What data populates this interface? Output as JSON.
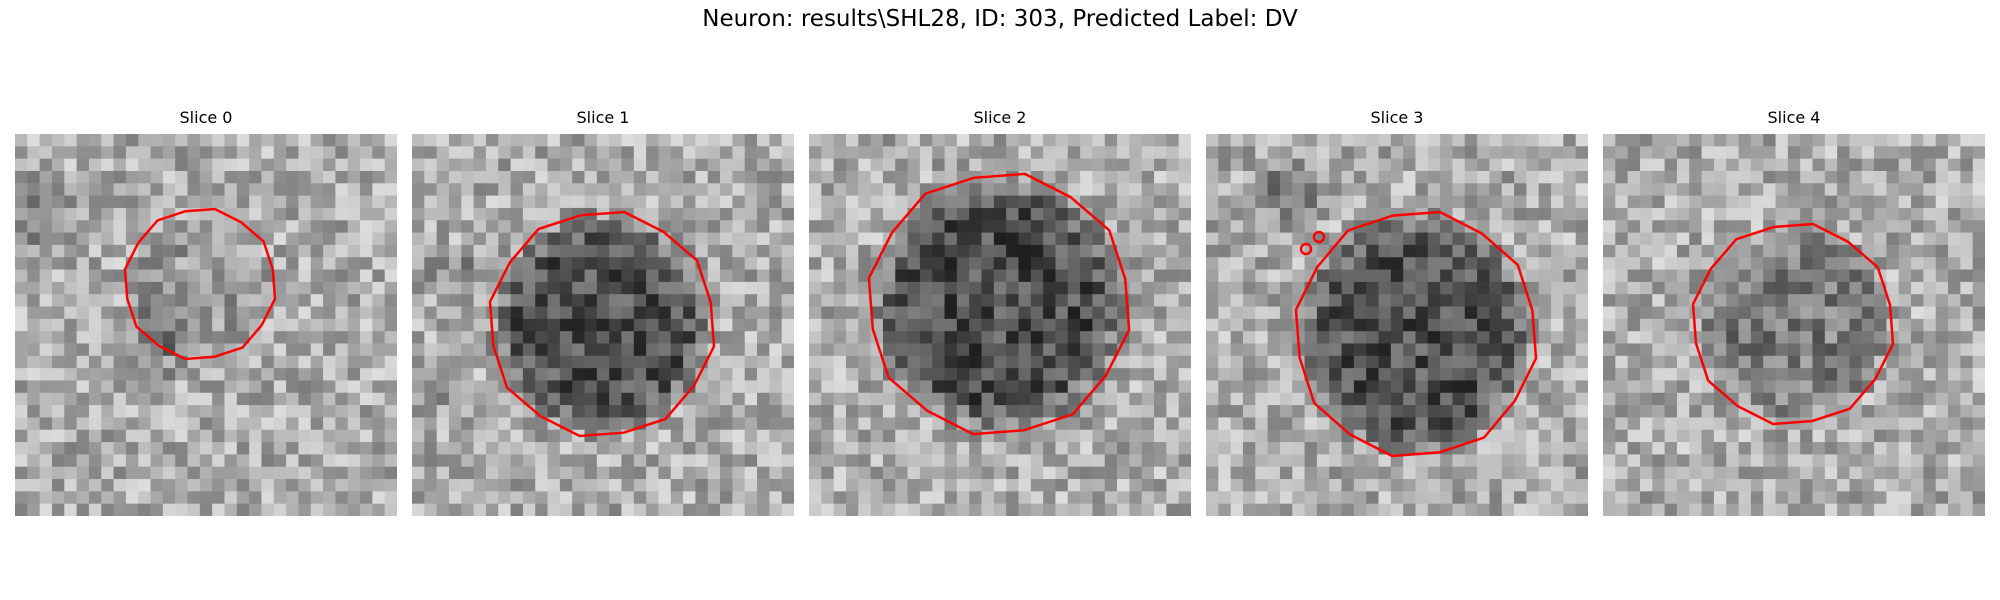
{
  "figure": {
    "title": "Neuron: results\\SHL28, ID: 303, Predicted Label: DV"
  },
  "panels": [
    {
      "title": "Slice 0"
    },
    {
      "title": "Slice 1"
    },
    {
      "title": "Slice 2"
    },
    {
      "title": "Slice 3"
    },
    {
      "title": "Slice 4"
    }
  ],
  "colors": {
    "contour": "#ff0000",
    "background": "#ffffff"
  }
}
